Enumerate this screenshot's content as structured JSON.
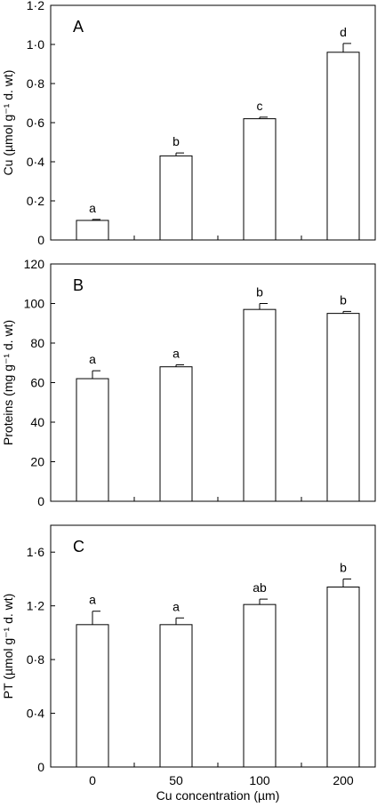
{
  "chart_data": [
    {
      "type": "bar",
      "panel": "A",
      "categories": [
        "0",
        "50",
        "100",
        "200"
      ],
      "values": [
        0.1,
        0.43,
        0.62,
        0.96
      ],
      "errors": [
        0.005,
        0.015,
        0.008,
        0.045
      ],
      "significance": [
        "a",
        "b",
        "c",
        "d"
      ],
      "ylabel": "Cu (µmol g⁻¹ d. wt)",
      "ylim": [
        0,
        1.2
      ],
      "yticks": [
        0,
        0.2,
        0.4,
        0.6,
        0.8,
        1.0,
        1.2
      ],
      "ytick_labels": [
        "0",
        "0·2",
        "0·4",
        "0·6",
        "0·8",
        "1·0",
        "1·2"
      ]
    },
    {
      "type": "bar",
      "panel": "B",
      "categories": [
        "0",
        "50",
        "100",
        "200"
      ],
      "values": [
        62,
        68,
        97,
        95
      ],
      "errors": [
        4,
        1,
        3,
        1
      ],
      "significance": [
        "a",
        "a",
        "b",
        "b"
      ],
      "ylabel": "Proteins (mg g⁻¹ d. wt)",
      "ylim": [
        0,
        120
      ],
      "yticks": [
        0,
        20,
        40,
        60,
        80,
        100,
        120
      ],
      "ytick_labels": [
        "0",
        "20",
        "40",
        "60",
        "80",
        "100",
        "120"
      ]
    },
    {
      "type": "bar",
      "panel": "C",
      "categories": [
        "0",
        "50",
        "100",
        "200"
      ],
      "values": [
        1.06,
        1.06,
        1.21,
        1.34
      ],
      "errors": [
        0.1,
        0.05,
        0.04,
        0.06
      ],
      "significance": [
        "a",
        "a",
        "ab",
        "b"
      ],
      "ylabel": "PT (µmol g⁻¹ d. wt)",
      "ylim": [
        0,
        1.8
      ],
      "yticks": [
        0,
        0.4,
        0.8,
        1.2,
        1.6
      ],
      "ytick_labels": [
        "0",
        "0·4",
        "0·8",
        "1·2",
        "1·6"
      ]
    }
  ],
  "shared_xlabel": "Cu concentration (µm)"
}
